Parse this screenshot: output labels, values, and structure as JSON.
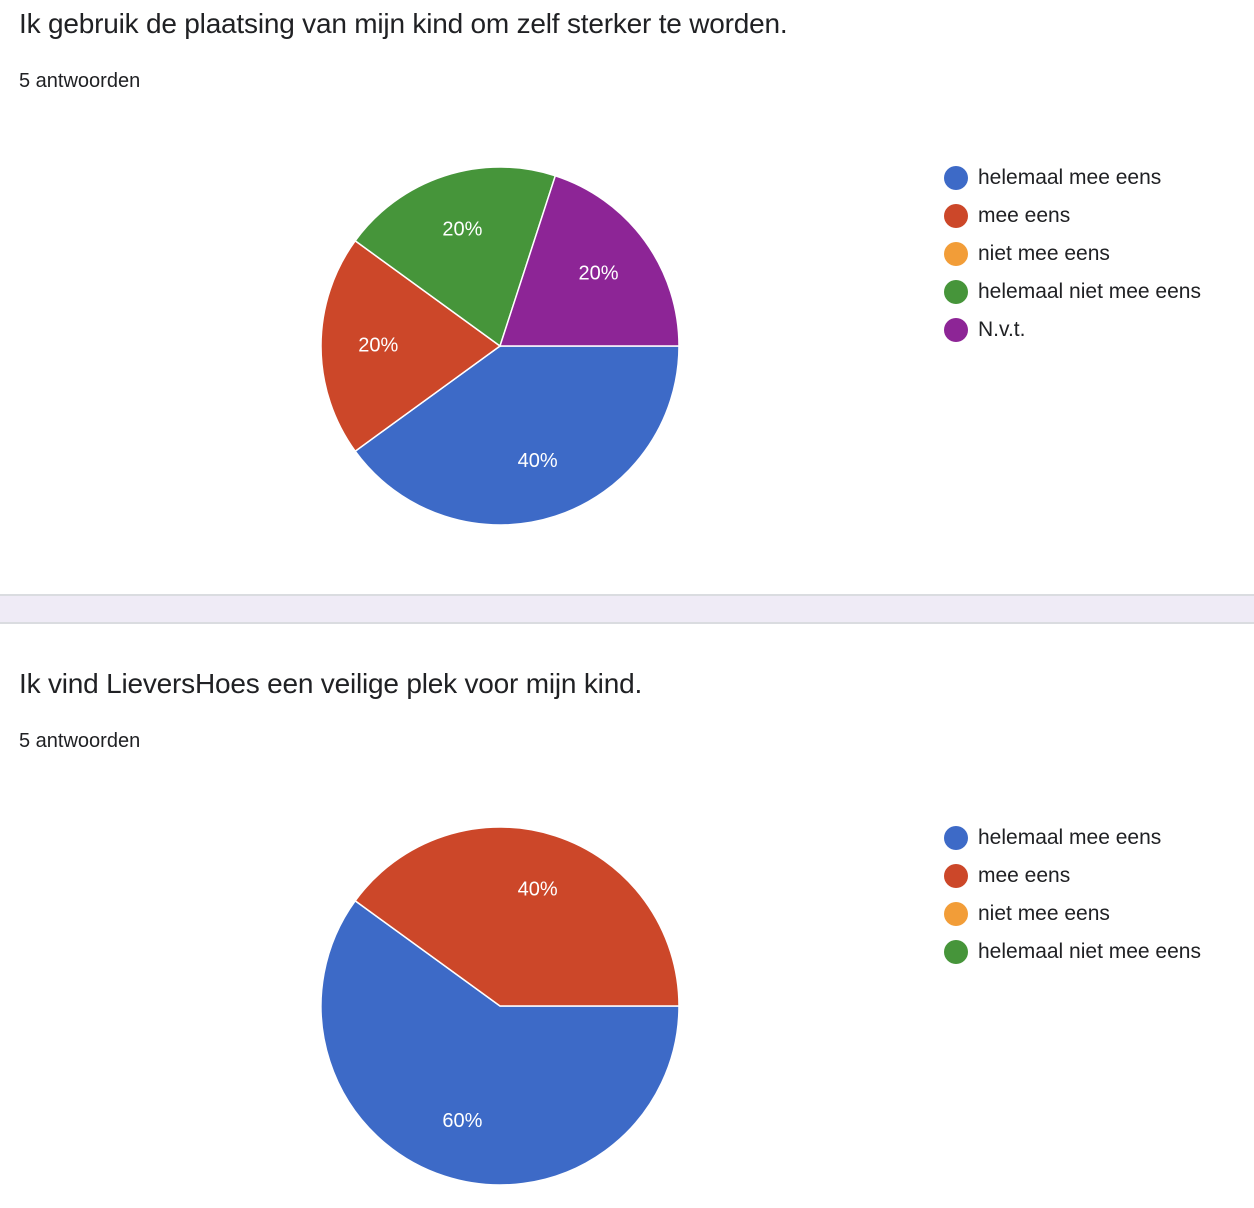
{
  "chart_data": [
    {
      "type": "pie",
      "title": "Ik gebruik de plaatsing van mijn kind om zelf sterker te worden.",
      "subtitle": "5 antwoorden",
      "categories": [
        "helemaal mee eens",
        "mee eens",
        "niet mee eens",
        "helemaal niet mee eens",
        "N.v.t."
      ],
      "values": [
        40,
        20,
        0,
        20,
        20
      ],
      "colors": [
        "#3d6ac7",
        "#cc4729",
        "#f29d38",
        "#46953a",
        "#8d2596"
      ],
      "legend": "right"
    },
    {
      "type": "pie",
      "title": "Ik vind LieversHoes een veilige plek voor mijn kind.",
      "subtitle": "5 antwoorden",
      "categories": [
        "helemaal mee eens",
        "mee eens",
        "niet mee eens",
        "helemaal niet mee eens"
      ],
      "values": [
        60,
        40,
        0,
        0
      ],
      "colors": [
        "#3d6ac7",
        "#cc4729",
        "#f29d38",
        "#46953a"
      ],
      "legend": "right"
    }
  ]
}
